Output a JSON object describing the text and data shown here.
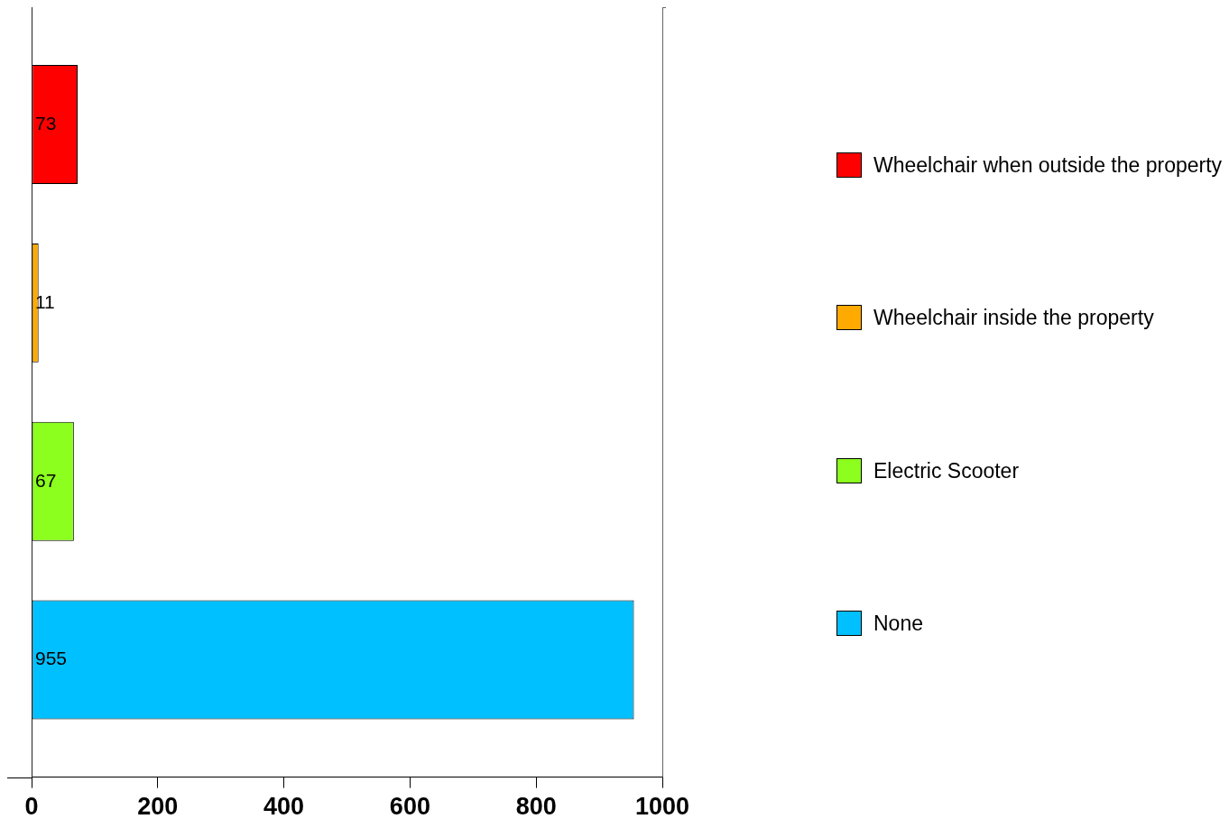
{
  "chart_data": {
    "type": "bar",
    "orientation": "horizontal",
    "categories": [
      null
    ],
    "series": [
      {
        "name": "Wheelchair when outside the property",
        "color": "#ff0000",
        "values": [
          73
        ]
      },
      {
        "name": "Wheelchair inside the property",
        "color": "#ffaa00",
        "values": [
          11
        ]
      },
      {
        "name": "Electric Scooter",
        "color": "#8cff1e",
        "values": [
          67
        ]
      },
      {
        "name": "None",
        "color": "#00c0ff",
        "values": [
          955
        ]
      }
    ],
    "xlim": [
      0,
      1000
    ],
    "xticks": [
      0,
      200,
      400,
      600,
      800,
      1000
    ],
    "data_labels": true,
    "legend": "right",
    "grid": false,
    "tick_labels": "x"
  }
}
